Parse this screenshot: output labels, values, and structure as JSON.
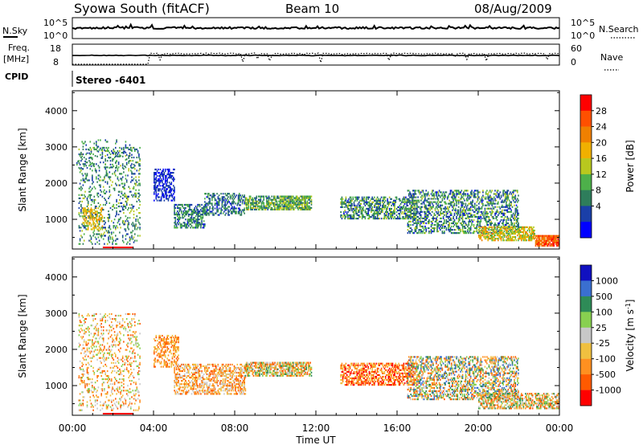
{
  "header": {
    "title": "Syowa South (fitACF)",
    "beam": "Beam 10",
    "date": "08/Aug/2009"
  },
  "top_panels": {
    "nsky": {
      "left_label": "N.Sky",
      "left_ticks": [
        "10^5",
        "10^0"
      ],
      "right_label": "N.Search",
      "right_ticks": [
        "10^5",
        "10^0"
      ]
    },
    "freq": {
      "left_label_line1": "Freq.",
      "left_label_line2": "[MHz]",
      "left_ticks": [
        "18",
        "8"
      ],
      "right_label": "Nave",
      "right_ticks": [
        "60",
        "0"
      ]
    },
    "cpid": {
      "label": "CPID",
      "mode_text": "Stereo -6401"
    }
  },
  "colors": {
    "power_scale": [
      "#0000ff",
      "#1a3fa8",
      "#2e7d5b",
      "#4db04a",
      "#b8c81e",
      "#f0b000",
      "#f08000",
      "#ff5000",
      "#ff0000"
    ],
    "velocity_scale": [
      "#ff0000",
      "#ff5a00",
      "#ff9020",
      "#f0c040",
      "#c8c8c8",
      "#88d050",
      "#2e8b57",
      "#3a6fd0",
      "#1010c0"
    ]
  },
  "chart_data": [
    {
      "type": "heatmap",
      "title": "Power",
      "xlabel": "Time UT",
      "ylabel": "Slant Range [km]",
      "x_ticks": [
        "00:00",
        "04:00",
        "08:00",
        "12:00",
        "16:00",
        "20:00",
        "00:00"
      ],
      "x_range_hours": [
        0,
        24
      ],
      "ylim": [
        180,
        4550
      ],
      "y_ticks": [
        1000,
        2000,
        3000,
        4000
      ],
      "colorbar": {
        "label": "Power [dB]",
        "ticks": [
          4,
          8,
          12,
          16,
          20,
          24,
          28
        ],
        "range": [
          0,
          32
        ]
      },
      "echo_regions": [
        {
          "t0": 0.3,
          "t1": 3.3,
          "r0": 300,
          "r1": 3000,
          "value_range": [
            4,
            16
          ],
          "density": 0.2
        },
        {
          "t0": 0.5,
          "t1": 1.5,
          "r0": 700,
          "r1": 1300,
          "value_range": [
            16,
            22
          ],
          "density": 0.35
        },
        {
          "t0": 0.2,
          "t1": 3.0,
          "r0": 2400,
          "r1": 3200,
          "value_range": [
            4,
            14
          ],
          "density": 0.1
        },
        {
          "t0": 4.0,
          "t1": 5.0,
          "r0": 1500,
          "r1": 2400,
          "value_range": [
            2,
            6
          ],
          "density": 0.5
        },
        {
          "t0": 5.0,
          "t1": 6.5,
          "r0": 750,
          "r1": 1400,
          "value_range": [
            3,
            14
          ],
          "density": 0.55
        },
        {
          "t0": 6.5,
          "t1": 8.5,
          "r0": 1100,
          "r1": 1700,
          "value_range": [
            3,
            12
          ],
          "density": 0.45
        },
        {
          "t0": 8.5,
          "t1": 11.8,
          "r0": 1250,
          "r1": 1650,
          "value_range": [
            6,
            18
          ],
          "density": 0.7
        },
        {
          "t0": 13.2,
          "t1": 17.0,
          "r0": 1000,
          "r1": 1600,
          "value_range": [
            3,
            16
          ],
          "density": 0.55
        },
        {
          "t0": 16.5,
          "t1": 22.0,
          "r0": 600,
          "r1": 1800,
          "value_range": [
            3,
            16
          ],
          "density": 0.45
        },
        {
          "t0": 20.0,
          "t1": 22.8,
          "r0": 400,
          "r1": 800,
          "value_range": [
            12,
            24
          ],
          "density": 0.6
        },
        {
          "t0": 22.8,
          "t1": 24.0,
          "r0": 250,
          "r1": 550,
          "value_range": [
            22,
            30
          ],
          "density": 0.85
        }
      ]
    },
    {
      "type": "heatmap",
      "title": "Velocity",
      "xlabel": "Time UT",
      "ylabel": "Slant Range [km]",
      "x_ticks": [
        "00:00",
        "04:00",
        "08:00",
        "12:00",
        "16:00",
        "20:00",
        "00:00"
      ],
      "x_range_hours": [
        0,
        24
      ],
      "ylim": [
        180,
        4550
      ],
      "y_ticks": [
        1000,
        2000,
        3000,
        4000
      ],
      "colorbar": {
        "label": "Velocity [m s^-1]",
        "ticks": [
          "1000",
          "500",
          "100",
          "25",
          "-25",
          "-100",
          "-500",
          "-1000"
        ]
      },
      "echo_regions": [
        {
          "t0": 0.3,
          "t1": 3.3,
          "r0": 300,
          "r1": 3000,
          "value_class_range": [
            1,
            5
          ],
          "density": 0.2
        },
        {
          "t0": 4.0,
          "t1": 5.2,
          "r0": 1500,
          "r1": 2400,
          "value_class_range": [
            1,
            3
          ],
          "density": 0.45
        },
        {
          "t0": 5.0,
          "t1": 8.5,
          "r0": 750,
          "r1": 1600,
          "value_class_range": [
            1,
            4
          ],
          "density": 0.5
        },
        {
          "t0": 8.5,
          "t1": 11.8,
          "r0": 1250,
          "r1": 1650,
          "value_class_range": [
            1,
            6
          ],
          "density": 0.7
        },
        {
          "t0": 13.2,
          "t1": 17.0,
          "r0": 1000,
          "r1": 1600,
          "value_class_range": [
            0,
            3
          ],
          "density": 0.55
        },
        {
          "t0": 16.5,
          "t1": 22.0,
          "r0": 600,
          "r1": 1800,
          "value_class_range": [
            1,
            7
          ],
          "density": 0.45
        },
        {
          "t0": 20.0,
          "t1": 24.0,
          "r0": 350,
          "r1": 800,
          "value_class_range": [
            1,
            6
          ],
          "density": 0.6
        }
      ]
    }
  ]
}
